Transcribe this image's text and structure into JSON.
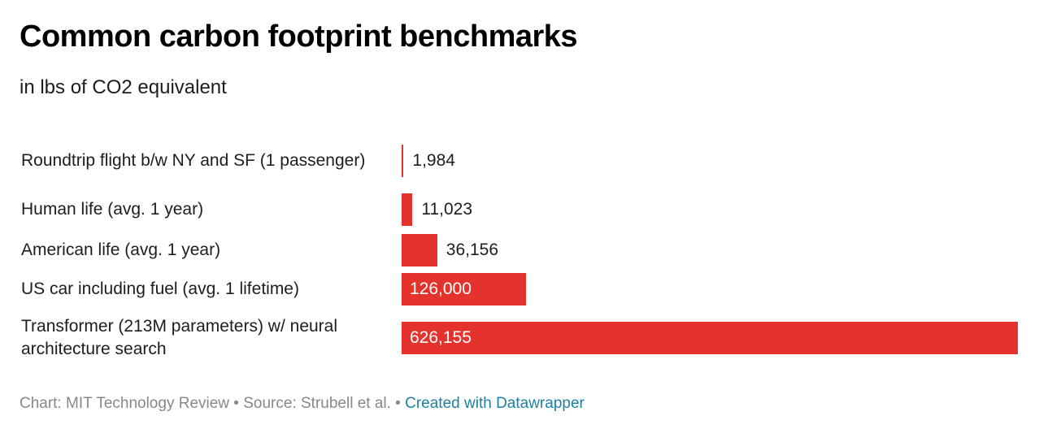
{
  "title": "Common carbon footprint benchmarks",
  "subtitle": "in lbs of CO2 equivalent",
  "chart_data": {
    "type": "bar",
    "orientation": "horizontal",
    "categories": [
      "Roundtrip flight b/w NY and SF (1 passenger)",
      "Human life (avg. 1 year)",
      "American life (avg. 1 year)",
      "US car including fuel (avg. 1 lifetime)",
      "Transformer (213M parameters) w/ neural architecture search"
    ],
    "values": [
      1984,
      11023,
      36156,
      126000,
      626155
    ],
    "value_labels": [
      "1,984",
      "11,023",
      "36,156",
      "126,000",
      "626,155"
    ],
    "xlim": [
      0,
      626155
    ],
    "bar_color": "#e4332c",
    "grid": false,
    "legend": "none"
  },
  "footer": {
    "credit": "Chart: MIT Technology Review",
    "separator": " • ",
    "source": "Source: Strubell et al.",
    "link": "Created with Datawrapper"
  }
}
